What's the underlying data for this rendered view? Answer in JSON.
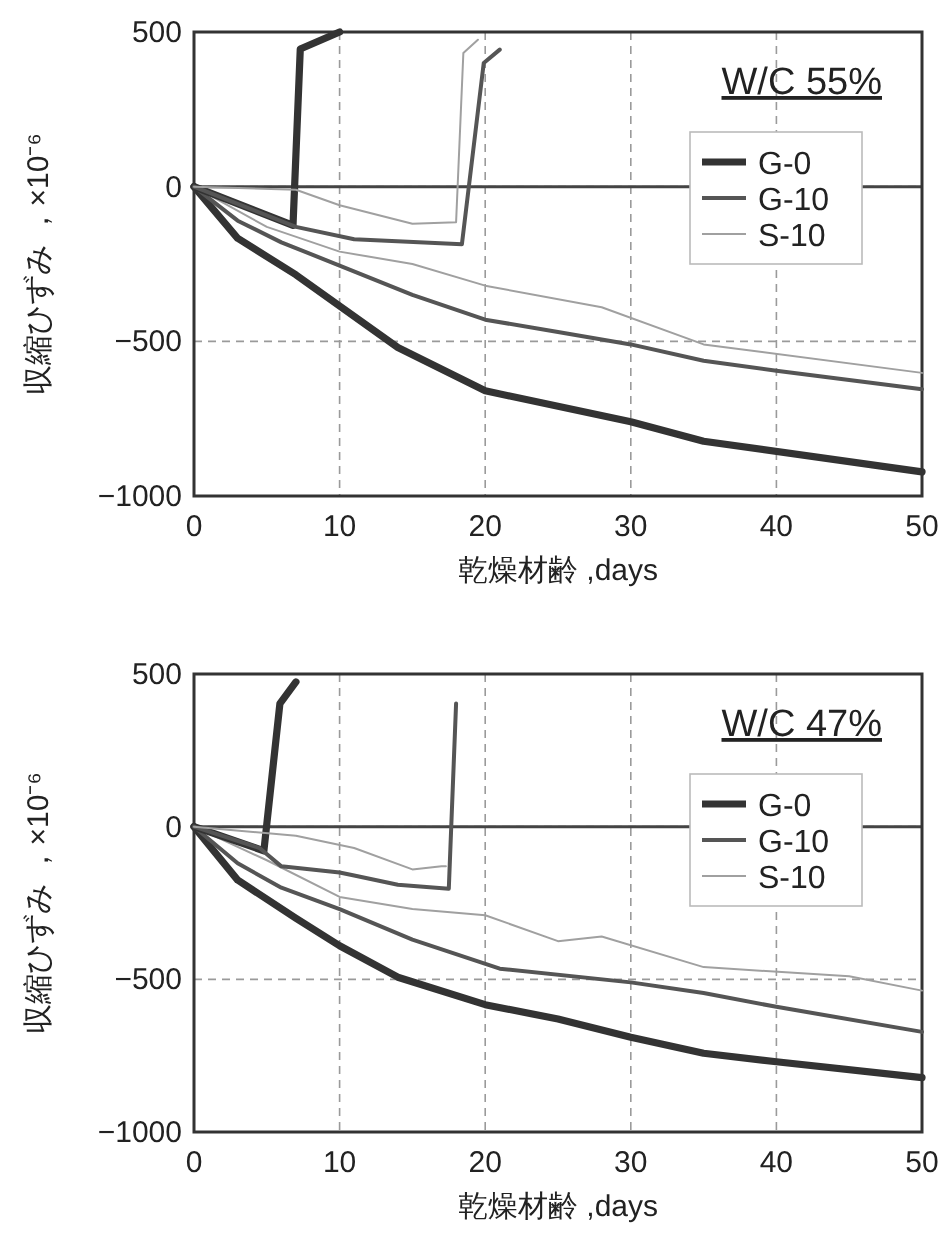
{
  "chart_data": [
    {
      "type": "line",
      "xlabel": "乾燥材齢 ,days",
      "ylabel": "収縮ひずみ ，×10⁻⁶",
      "annotations": [
        "W/C 55%"
      ],
      "xlim": [
        0,
        50
      ],
      "ylim": [
        -1000,
        500
      ],
      "xticks": [
        0,
        10,
        20,
        30,
        40,
        50
      ],
      "yticks": [
        -1000,
        -500,
        0,
        500
      ],
      "grid": true,
      "legend": "top right",
      "ref_lines": [
        {
          "axis": "y",
          "value": 0,
          "color": "#444444"
        }
      ],
      "series": [
        {
          "name": "G-0",
          "color": "#333333",
          "x": [
            0,
            3,
            7,
            14,
            20,
            30,
            35,
            50
          ],
          "values": [
            0,
            -167,
            -285,
            -520,
            -660,
            -760,
            -823,
            -922
          ]
        },
        {
          "name": "G-10",
          "color": "#555555",
          "x": [
            0,
            3,
            6,
            10,
            15,
            20,
            25,
            30,
            35,
            40,
            50
          ],
          "values": [
            0,
            -110,
            -180,
            -255,
            -350,
            -430,
            -470,
            -510,
            -563,
            -595,
            -655
          ]
        },
        {
          "name": "S-10",
          "color": "#a0a0a0",
          "x": [
            0,
            5,
            10,
            15,
            20,
            28,
            35,
            50
          ],
          "values": [
            0,
            -130,
            -210,
            -250,
            -320,
            -390,
            -510,
            -602
          ]
        },
        {
          "color": "#333333",
          "x": [
            0,
            6.8,
            7.3,
            10
          ],
          "values": [
            0,
            -125,
            445,
            500
          ]
        },
        {
          "color": "#555555",
          "x": [
            0,
            7,
            11,
            18.4,
            19.9,
            21
          ],
          "values": [
            0,
            -130,
            -170,
            -186,
            400,
            443
          ]
        },
        {
          "color": "#a0a0a0",
          "x": [
            0,
            7,
            10,
            15,
            18,
            18.5,
            19.5
          ],
          "values": [
            0,
            -10,
            -60,
            -120,
            -115,
            432,
            475
          ]
        }
      ]
    },
    {
      "type": "line",
      "xlabel": "乾燥材齢 ,days",
      "ylabel": "収縮ひずみ ，×10⁻⁶",
      "annotations": [
        "W/C 47%"
      ],
      "xlim": [
        0,
        50
      ],
      "ylim": [
        -1000,
        500
      ],
      "xticks": [
        0,
        10,
        20,
        30,
        40,
        50
      ],
      "yticks": [
        -1000,
        -500,
        0,
        500
      ],
      "grid": true,
      "legend": "top right",
      "ref_lines": [
        {
          "axis": "y",
          "value": 0,
          "color": "#444444"
        }
      ],
      "series": [
        {
          "name": "G-0",
          "color": "#333333",
          "x": [
            0,
            3,
            7,
            10,
            14,
            20,
            25,
            30,
            35,
            40,
            50
          ],
          "values": [
            0,
            -175,
            -300,
            -390,
            -493,
            -583,
            -630,
            -690,
            -742,
            -770,
            -822
          ]
        },
        {
          "name": "G-10",
          "color": "#555555",
          "x": [
            0,
            3,
            6,
            10,
            15,
            21,
            30,
            35,
            40,
            50
          ],
          "values": [
            0,
            -120,
            -200,
            -270,
            -370,
            -465,
            -510,
            -545,
            -590,
            -672
          ]
        },
        {
          "name": "S-10",
          "color": "#a0a0a0",
          "x": [
            0,
            5,
            10,
            15,
            20,
            25,
            28,
            35,
            45,
            50
          ],
          "values": [
            0,
            -110,
            -230,
            -270,
            -290,
            -375,
            -360,
            -460,
            -490,
            -537
          ]
        },
        {
          "color": "#333333",
          "x": [
            0,
            4.8,
            5.9,
            7
          ],
          "values": [
            0,
            -79,
            403,
            474
          ]
        },
        {
          "color": "#555555",
          "x": [
            0,
            4.5,
            6,
            10,
            11,
            14,
            17.5,
            18
          ],
          "values": [
            0,
            -70,
            -130,
            -150,
            -160,
            -190,
            -203,
            403
          ]
        },
        {
          "color": "#a0a0a0",
          "x": [
            0,
            7,
            11,
            15,
            17,
            17.3
          ],
          "values": [
            0,
            -30,
            -70,
            -140,
            -130,
            -130
          ]
        }
      ]
    }
  ]
}
